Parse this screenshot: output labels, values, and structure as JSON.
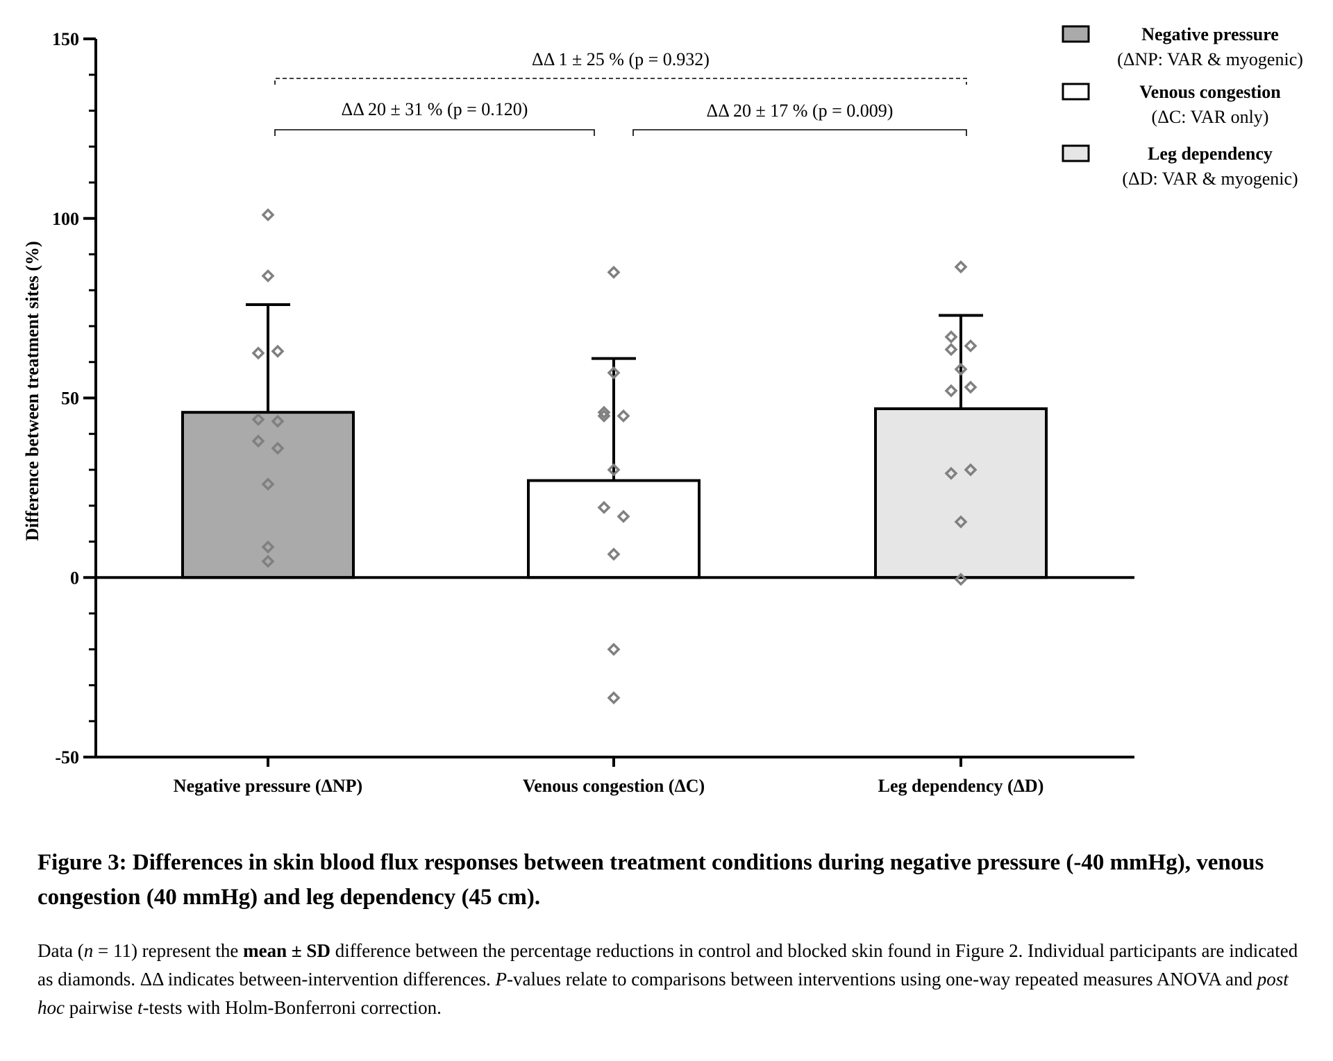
{
  "chart_data": {
    "type": "bar",
    "ylabel": "Difference between treatment sites (%)",
    "ylim": [
      -50,
      150
    ],
    "yticks": [
      "150",
      "100",
      "50",
      "0",
      "-50"
    ],
    "categories": [
      "Negative pressure (ΔNP)",
      "Venous congestion (ΔC)",
      "Leg dependency (ΔD)"
    ],
    "values": [
      46,
      27,
      47
    ],
    "sd": [
      30,
      34,
      26
    ],
    "colors": [
      "#aaaaaa",
      "#ffffff",
      "#e6e6e6"
    ],
    "points": [
      [
        101,
        84,
        62.5,
        63,
        44,
        43.5,
        38,
        36,
        26,
        8.5,
        4.5
      ],
      [
        85,
        57,
        46,
        45,
        45,
        30,
        19.5,
        17,
        6.5,
        -20,
        -33.5
      ],
      [
        86.5,
        67,
        63.5,
        64.5,
        58,
        52,
        53,
        29,
        30,
        15.5,
        -0.5
      ]
    ],
    "comparisons": [
      {
        "label": "ΔΔ 1 ± 25 % (p = 0.932)",
        "from": 0,
        "to": 2,
        "style": "dashed"
      },
      {
        "label": "ΔΔ 20 ± 31 % (p = 0.120)",
        "from": 0,
        "to": 1,
        "style": "solid"
      },
      {
        "label": "ΔΔ 20 ± 17 % (p = 0.009)",
        "from": 1,
        "to": 2,
        "style": "solid"
      }
    ],
    "legend": [
      {
        "title": "Negative pressure",
        "subtitle": "(ΔNP: VAR & myogenic)",
        "color": "#aaaaaa"
      },
      {
        "title": "Venous congestion",
        "subtitle": "(ΔC: VAR only)",
        "color": "#ffffff"
      },
      {
        "title": "Leg dependency",
        "subtitle": "(ΔD: VAR & myogenic)",
        "color": "#e6e6e6"
      }
    ],
    "legend_position": "top-right"
  },
  "caption": {
    "title": "Figure 3: Differences in skin blood flux responses between treatment conditions during negative pressure (-40 mmHg), venous congestion (40 mmHg) and leg dependency (45 cm).",
    "body": {
      "p1": "Data (",
      "n_italic": "n",
      "p2": " = 11) represent the ",
      "bold": "mean ± SD",
      "p3": " difference between the percentage reductions in control and blocked skin found in Figure 2. Individual participants are indicated as diamonds. ΔΔ indicates between-intervention differences. ",
      "p_italic": "P",
      "p4": "-values relate to comparisons between interventions using one-way repeated measures ANOVA and ",
      "posthoc_italic": "post hoc",
      "p5": " pairwise ",
      "t_italic": "t",
      "p6": "-tests with Holm-Bonferroni correction."
    }
  }
}
